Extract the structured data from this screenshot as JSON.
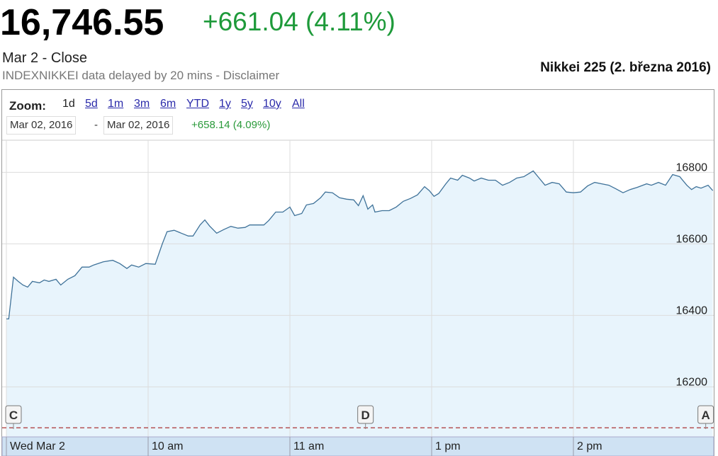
{
  "header": {
    "price": "16,746.55",
    "change": "+661.04 (4.11%)",
    "session": "Mar 2 - Close",
    "source": "INDEXNIKKEI data delayed by 20 mins - Disclaimer",
    "caption": "Nikkei 225 (2. března 2016)"
  },
  "zoom": {
    "label": "Zoom:",
    "options": [
      "1d",
      "5d",
      "1m",
      "3m",
      "6m",
      "YTD",
      "1y",
      "5y",
      "10y",
      "All"
    ]
  },
  "range": {
    "from": "Mar 02, 2016",
    "separator": "-",
    "to": "Mar 02, 2016",
    "change": "+658.14 (4.09%)"
  },
  "chart_data": {
    "type": "line",
    "color": "#3f7299",
    "fill": "#e8f4fc",
    "x": [
      0,
      1,
      3,
      5,
      7,
      9,
      11,
      14,
      16,
      18,
      21,
      23,
      26,
      29,
      32,
      35,
      37,
      41,
      45,
      48,
      51,
      53,
      56,
      59,
      63,
      66,
      68,
      71,
      74,
      77,
      79,
      82,
      84,
      86,
      89,
      92,
      95,
      98,
      101,
      103,
      106,
      109,
      111,
      114,
      117,
      120,
      122,
      125,
      127,
      130,
      133,
      135,
      138,
      141,
      144,
      147,
      149,
      151,
      153,
      155,
      156,
      159,
      162,
      165,
      168,
      171,
      174,
      177,
      179,
      181,
      183,
      186,
      188,
      191,
      193,
      196,
      198,
      201,
      204,
      207,
      210,
      213,
      216,
      219,
      223,
      225,
      228,
      231,
      234,
      237,
      240,
      243,
      246,
      249,
      252,
      255,
      258,
      261,
      264,
      267,
      271,
      273,
      276,
      279,
      282,
      285,
      288,
      290,
      292,
      294,
      297,
      299
    ],
    "values": [
      16390,
      16390,
      16507,
      16495,
      16485,
      16479,
      16495,
      16491,
      16499,
      16495,
      16501,
      16485,
      16501,
      16511,
      16535,
      16535,
      16541,
      16550,
      16554,
      16545,
      16531,
      16541,
      16535,
      16545,
      16543,
      16600,
      16634,
      16638,
      16630,
      16622,
      16622,
      16653,
      16667,
      16650,
      16630,
      16640,
      16649,
      16644,
      16646,
      16653,
      16653,
      16653,
      16665,
      16689,
      16689,
      16703,
      16679,
      16685,
      16709,
      16713,
      16729,
      16745,
      16743,
      16729,
      16725,
      16723,
      16707,
      16735,
      16697,
      16709,
      16689,
      16693,
      16693,
      16703,
      16719,
      16727,
      16737,
      16760,
      16749,
      16733,
      16741,
      16768,
      16784,
      16778,
      16792,
      16784,
      16776,
      16784,
      16778,
      16778,
      16764,
      16772,
      16784,
      16788,
      16804,
      16788,
      16764,
      16772,
      16768,
      16745,
      16743,
      16745,
      16762,
      16772,
      16768,
      16764,
      16754,
      16743,
      16752,
      16758,
      16768,
      16764,
      16772,
      16764,
      16794,
      16788,
      16764,
      16752,
      16760,
      16756,
      16764,
      16749
    ],
    "xlim": [
      0,
      300
    ],
    "xticks": [
      {
        "value": 0,
        "label": "Wed Mar 2"
      },
      {
        "value": 60,
        "label": "10 am"
      },
      {
        "value": 120,
        "label": "11 am"
      },
      {
        "value": 180,
        "label": "1 pm"
      },
      {
        "value": 240,
        "label": "2 pm"
      }
    ],
    "ylim": [
      16066,
      16890
    ],
    "yticks": [
      16200,
      16400,
      16600,
      16800
    ],
    "grid": true,
    "previous_close": 16085.51,
    "flags": [
      {
        "label": "C",
        "x": 3
      },
      {
        "label": "D",
        "x": 152
      },
      {
        "label": "A",
        "x": 296
      }
    ]
  }
}
